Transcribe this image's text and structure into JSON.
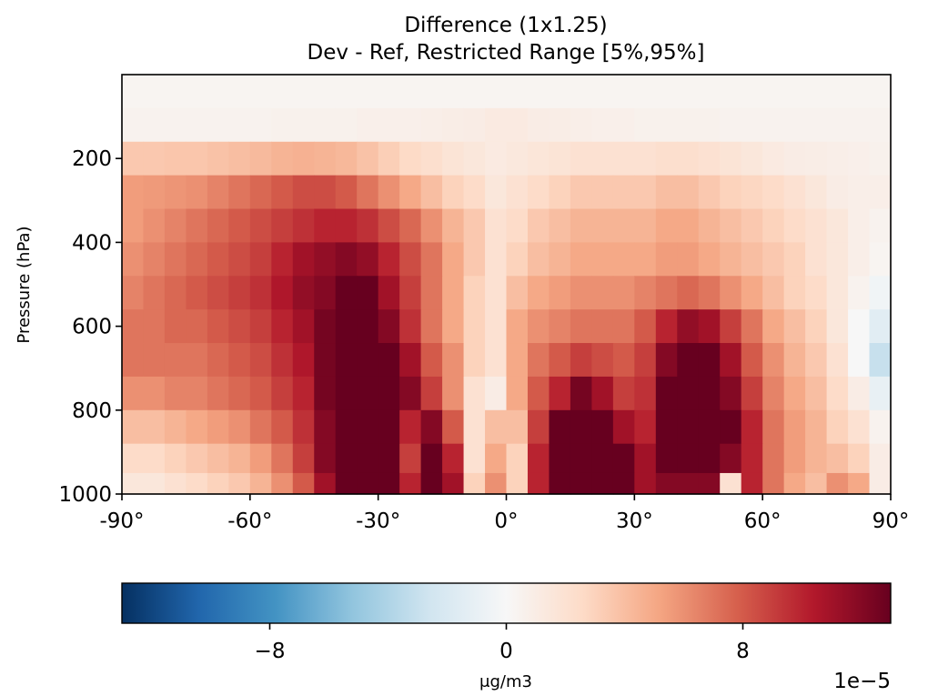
{
  "chart_data": {
    "type": "heatmap",
    "title": "Difference (1x1.25)",
    "subtitle": "Dev - Ref, Restricted Range [5%,95%]",
    "xlabel": "",
    "ylabel": "Pressure (hPa)",
    "xlim": [
      -90,
      90
    ],
    "ylim": [
      1000,
      0
    ],
    "x_ticks": [
      {
        "value": -90,
        "label": "-90°"
      },
      {
        "value": -60,
        "label": "-60°"
      },
      {
        "value": -30,
        "label": "-30°"
      },
      {
        "value": 0,
        "label": "0°"
      },
      {
        "value": 30,
        "label": "30°"
      },
      {
        "value": 60,
        "label": "60°"
      },
      {
        "value": 90,
        "label": "90°"
      }
    ],
    "y_ticks": [
      {
        "value": 200,
        "label": "200"
      },
      {
        "value": 400,
        "label": "400"
      },
      {
        "value": 600,
        "label": "600"
      },
      {
        "value": 800,
        "label": "800"
      },
      {
        "value": 1000,
        "label": "1000"
      }
    ],
    "colorbar": {
      "colormap": "RdBu_r",
      "range": [
        -13,
        13
      ],
      "ticks": [
        {
          "value": -8,
          "label": "−8"
        },
        {
          "value": 0,
          "label": "0"
        },
        {
          "value": 8,
          "label": "8"
        }
      ],
      "label": "μg/m3",
      "offset_label": "1e−5"
    },
    "x_centers": [
      -87.5,
      -82.5,
      -77.5,
      -72.5,
      -67.5,
      -62.5,
      -57.5,
      -52.5,
      -47.5,
      -42.5,
      -37.5,
      -32.5,
      -27.5,
      -22.5,
      -17.5,
      -12.5,
      -7.5,
      -2.5,
      2.5,
      7.5,
      12.5,
      17.5,
      22.5,
      27.5,
      32.5,
      37.5,
      42.5,
      47.5,
      52.5,
      57.5,
      62.5,
      67.5,
      72.5,
      77.5,
      82.5,
      87.5
    ],
    "y_centers": [
      40,
      120,
      200,
      280,
      360,
      440,
      520,
      600,
      680,
      760,
      840,
      920,
      980
    ],
    "values": [
      [
        0.3,
        0.3,
        0.3,
        0.3,
        0.3,
        0.3,
        0.3,
        0.3,
        0.3,
        0.3,
        0.3,
        0.3,
        0.3,
        0.3,
        0.3,
        0.3,
        0.3,
        0.3,
        0.3,
        0.3,
        0.3,
        0.3,
        0.3,
        0.3,
        0.3,
        0.3,
        0.3,
        0.3,
        0.3,
        0.3,
        0.3,
        0.3,
        0.3,
        0.3,
        0.3,
        0.3
      ],
      [
        0.5,
        0.5,
        0.5,
        0.5,
        0.5,
        0.5,
        0.5,
        0.6,
        0.6,
        0.6,
        0.6,
        0.7,
        0.7,
        0.7,
        0.8,
        0.9,
        1.0,
        1.2,
        1.2,
        1.0,
        0.9,
        0.8,
        0.7,
        0.7,
        0.6,
        0.6,
        0.6,
        0.6,
        0.5,
        0.5,
        0.5,
        0.5,
        0.5,
        0.5,
        0.5,
        0.5
      ],
      [
        3.5,
        3.5,
        3.6,
        3.6,
        3.8,
        4.0,
        4.2,
        4.5,
        4.6,
        4.5,
        4.3,
        3.8,
        3.2,
        2.6,
        2.2,
        1.8,
        1.5,
        1.2,
        1.4,
        1.6,
        1.8,
        2.0,
        2.0,
        2.0,
        2.0,
        2.2,
        2.2,
        2.0,
        1.8,
        1.5,
        1.2,
        1.0,
        0.9,
        0.8,
        0.7,
        0.6
      ],
      [
        5.5,
        5.6,
        5.8,
        6.0,
        6.5,
        7.0,
        7.5,
        8.0,
        8.5,
        8.5,
        8.0,
        7.0,
        6.0,
        5.0,
        4.0,
        3.0,
        2.5,
        1.5,
        2.0,
        2.5,
        3.0,
        3.5,
        3.5,
        3.5,
        3.5,
        4.0,
        4.0,
        3.5,
        3.0,
        2.8,
        2.5,
        2.0,
        1.5,
        1.0,
        0.8,
        0.8
      ],
      [
        5.5,
        6.0,
        6.5,
        7.0,
        7.5,
        8.0,
        8.5,
        9.0,
        9.5,
        10.0,
        10.0,
        9.5,
        8.5,
        7.5,
        6.0,
        4.5,
        3.5,
        2.0,
        2.5,
        3.5,
        4.0,
        4.5,
        4.5,
        4.5,
        4.5,
        5.0,
        5.0,
        4.5,
        4.0,
        3.5,
        3.0,
        2.5,
        2.0,
        1.5,
        0.8,
        0.5
      ],
      [
        6.0,
        6.5,
        7.0,
        7.5,
        8.0,
        8.5,
        9.0,
        10.0,
        11.0,
        11.5,
        12.0,
        11.5,
        10.0,
        8.5,
        7.0,
        5.0,
        3.5,
        2.0,
        3.0,
        4.0,
        4.5,
        5.0,
        5.0,
        5.0,
        5.0,
        5.5,
        5.5,
        5.0,
        4.5,
        4.0,
        3.5,
        3.0,
        2.0,
        1.5,
        0.8,
        0.3
      ],
      [
        6.5,
        7.0,
        7.5,
        8.0,
        8.5,
        9.0,
        9.5,
        10.5,
        11.5,
        12.0,
        13.0,
        13.0,
        11.0,
        9.0,
        7.0,
        5.0,
        3.0,
        2.0,
        4.0,
        5.0,
        5.5,
        6.0,
        6.0,
        6.0,
        6.5,
        7.0,
        7.5,
        7.0,
        6.0,
        5.0,
        4.0,
        3.0,
        2.5,
        1.5,
        0.5,
        -0.5
      ],
      [
        7.0,
        7.0,
        7.5,
        7.5,
        8.0,
        8.5,
        9.0,
        10.0,
        11.0,
        12.5,
        13.0,
        13.0,
        12.0,
        9.5,
        7.0,
        5.0,
        3.0,
        2.0,
        5.0,
        6.0,
        6.5,
        7.0,
        7.0,
        7.0,
        8.0,
        10.0,
        11.5,
        11.0,
        9.0,
        7.0,
        5.0,
        4.0,
        3.0,
        1.5,
        0.0,
        -1.5
      ],
      [
        7.0,
        7.0,
        7.0,
        7.0,
        7.5,
        8.0,
        8.5,
        9.5,
        10.5,
        12.5,
        13.0,
        13.0,
        13.0,
        11.0,
        8.0,
        6.0,
        3.0,
        2.0,
        5.0,
        7.0,
        8.0,
        9.0,
        8.5,
        8.0,
        9.0,
        12.0,
        13.0,
        13.0,
        11.0,
        8.0,
        6.0,
        4.5,
        3.5,
        2.0,
        0.0,
        -3.0
      ],
      [
        6.0,
        6.0,
        6.5,
        6.5,
        7.0,
        7.5,
        8.0,
        9.0,
        10.0,
        12.5,
        13.0,
        13.0,
        13.0,
        12.0,
        9.0,
        6.0,
        2.0,
        1.0,
        5.0,
        8.0,
        10.0,
        12.5,
        11.0,
        9.0,
        9.5,
        13.0,
        13.0,
        13.0,
        12.0,
        9.0,
        6.5,
        5.0,
        4.0,
        2.5,
        1.0,
        -1.0
      ],
      [
        4.0,
        4.0,
        4.5,
        5.0,
        5.5,
        6.0,
        7.0,
        8.0,
        9.5,
        12.0,
        13.0,
        13.0,
        13.0,
        10.0,
        12.0,
        8.0,
        2.0,
        4.0,
        4.0,
        9.0,
        13.0,
        13.0,
        13.0,
        11.0,
        10.0,
        13.0,
        13.0,
        13.0,
        13.0,
        10.0,
        7.0,
        5.5,
        4.5,
        3.0,
        2.0,
        0.5
      ],
      [
        2.5,
        2.5,
        3.0,
        3.5,
        4.0,
        4.5,
        5.5,
        7.0,
        9.0,
        12.0,
        13.0,
        13.0,
        13.0,
        9.0,
        13.0,
        10.0,
        2.0,
        5.0,
        3.0,
        10.0,
        13.0,
        13.0,
        13.0,
        13.0,
        11.0,
        13.0,
        13.0,
        13.0,
        12.0,
        10.0,
        7.0,
        5.5,
        4.5,
        4.0,
        3.0,
        1.0
      ],
      [
        1.5,
        1.5,
        2.0,
        2.5,
        3.0,
        3.5,
        4.5,
        6.0,
        8.0,
        11.0,
        13.0,
        13.0,
        13.0,
        10.0,
        13.0,
        11.0,
        3.0,
        6.0,
        3.0,
        10.0,
        13.0,
        13.0,
        13.0,
        13.0,
        11.0,
        12.0,
        12.0,
        12.0,
        2.0,
        10.0,
        7.0,
        5.0,
        4.0,
        6.0,
        5.0,
        1.0
      ]
    ]
  }
}
